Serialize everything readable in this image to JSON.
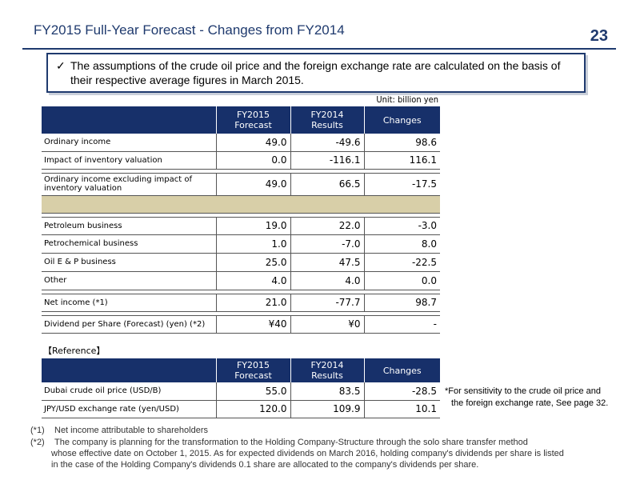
{
  "header": {
    "title": "FY2015 Full-Year Forecast - Changes from FY2014",
    "page_number": "23"
  },
  "note": {
    "check": "✓",
    "text": "The assumptions of the crude oil price and the foreign exchange rate are calculated on the basis of their respective average figures in March 2015."
  },
  "unit": "Unit: billion yen",
  "main_table": {
    "columns": [
      {
        "line1": "FY2015",
        "line2": "Forecast"
      },
      {
        "line1": "FY2014",
        "line2": "Results"
      },
      {
        "line1": "Changes",
        "line2": ""
      }
    ],
    "rows": [
      {
        "label": "Ordinary income",
        "fy2015": "49.0",
        "fy2014": "-49.6",
        "change": "98.6"
      },
      {
        "label": "Impact of inventory valuation",
        "fy2015": "0.0",
        "fy2014": "-116.1",
        "change": "116.1"
      },
      {
        "label": "Ordinary income excluding impact of inventory valuation",
        "fy2015": "49.0",
        "fy2014": "66.5",
        "change": "-17.5"
      },
      {
        "label": "Petroleum business",
        "fy2015": "19.0",
        "fy2014": "22.0",
        "change": "-3.0"
      },
      {
        "label": "Petrochemical business",
        "fy2015": "1.0",
        "fy2014": "-7.0",
        "change": "8.0"
      },
      {
        "label": "Oil E & P business",
        "fy2015": "25.0",
        "fy2014": "47.5",
        "change": "-22.5"
      },
      {
        "label": "Other",
        "fy2015": "4.0",
        "fy2014": "4.0",
        "change": "0.0"
      },
      {
        "label": "Net income (*1)",
        "fy2015": "21.0",
        "fy2014": "-77.7",
        "change": "98.7"
      },
      {
        "label": "Dividend per Share (Forecast) (yen) (*2)",
        "fy2015": "¥40",
        "fy2014": "¥0",
        "change": "-"
      }
    ]
  },
  "reference": {
    "title": "【Reference】",
    "columns": [
      {
        "line1": "FY2015",
        "line2": "Forecast"
      },
      {
        "line1": "FY2014",
        "line2": "Results"
      },
      {
        "line1": "Changes",
        "line2": ""
      }
    ],
    "rows": [
      {
        "label": "Dubai crude oil price (USD/B)",
        "fy2015": "55.0",
        "fy2014": "83.5",
        "change": "-28.5"
      },
      {
        "label": "JPY/USD exchange rate (yen/USD)",
        "fy2015": "120.0",
        "fy2014": "109.9",
        "change": "10.1"
      }
    ]
  },
  "sensitivity_note": {
    "line1": "*For sensitivity to the crude oil price and",
    "line2": "the foreign exchange rate, See page 32."
  },
  "footnotes": [
    {
      "mark": "(*1)",
      "text": "Net income attributable to shareholders",
      "cont1": "",
      "cont2": ""
    },
    {
      "mark": "(*2)",
      "text": "The company is planning for the transformation to the Holding Company-Structure through the solo share transfer method",
      "cont1": "whose effective date on October 1, 2015. As for expected dividends on March 2016, holding company's dividends per share is listed",
      "cont2": "in the case of the Holding Company's dividends 0.1 share are allocated to the company's dividends per share."
    }
  ]
}
